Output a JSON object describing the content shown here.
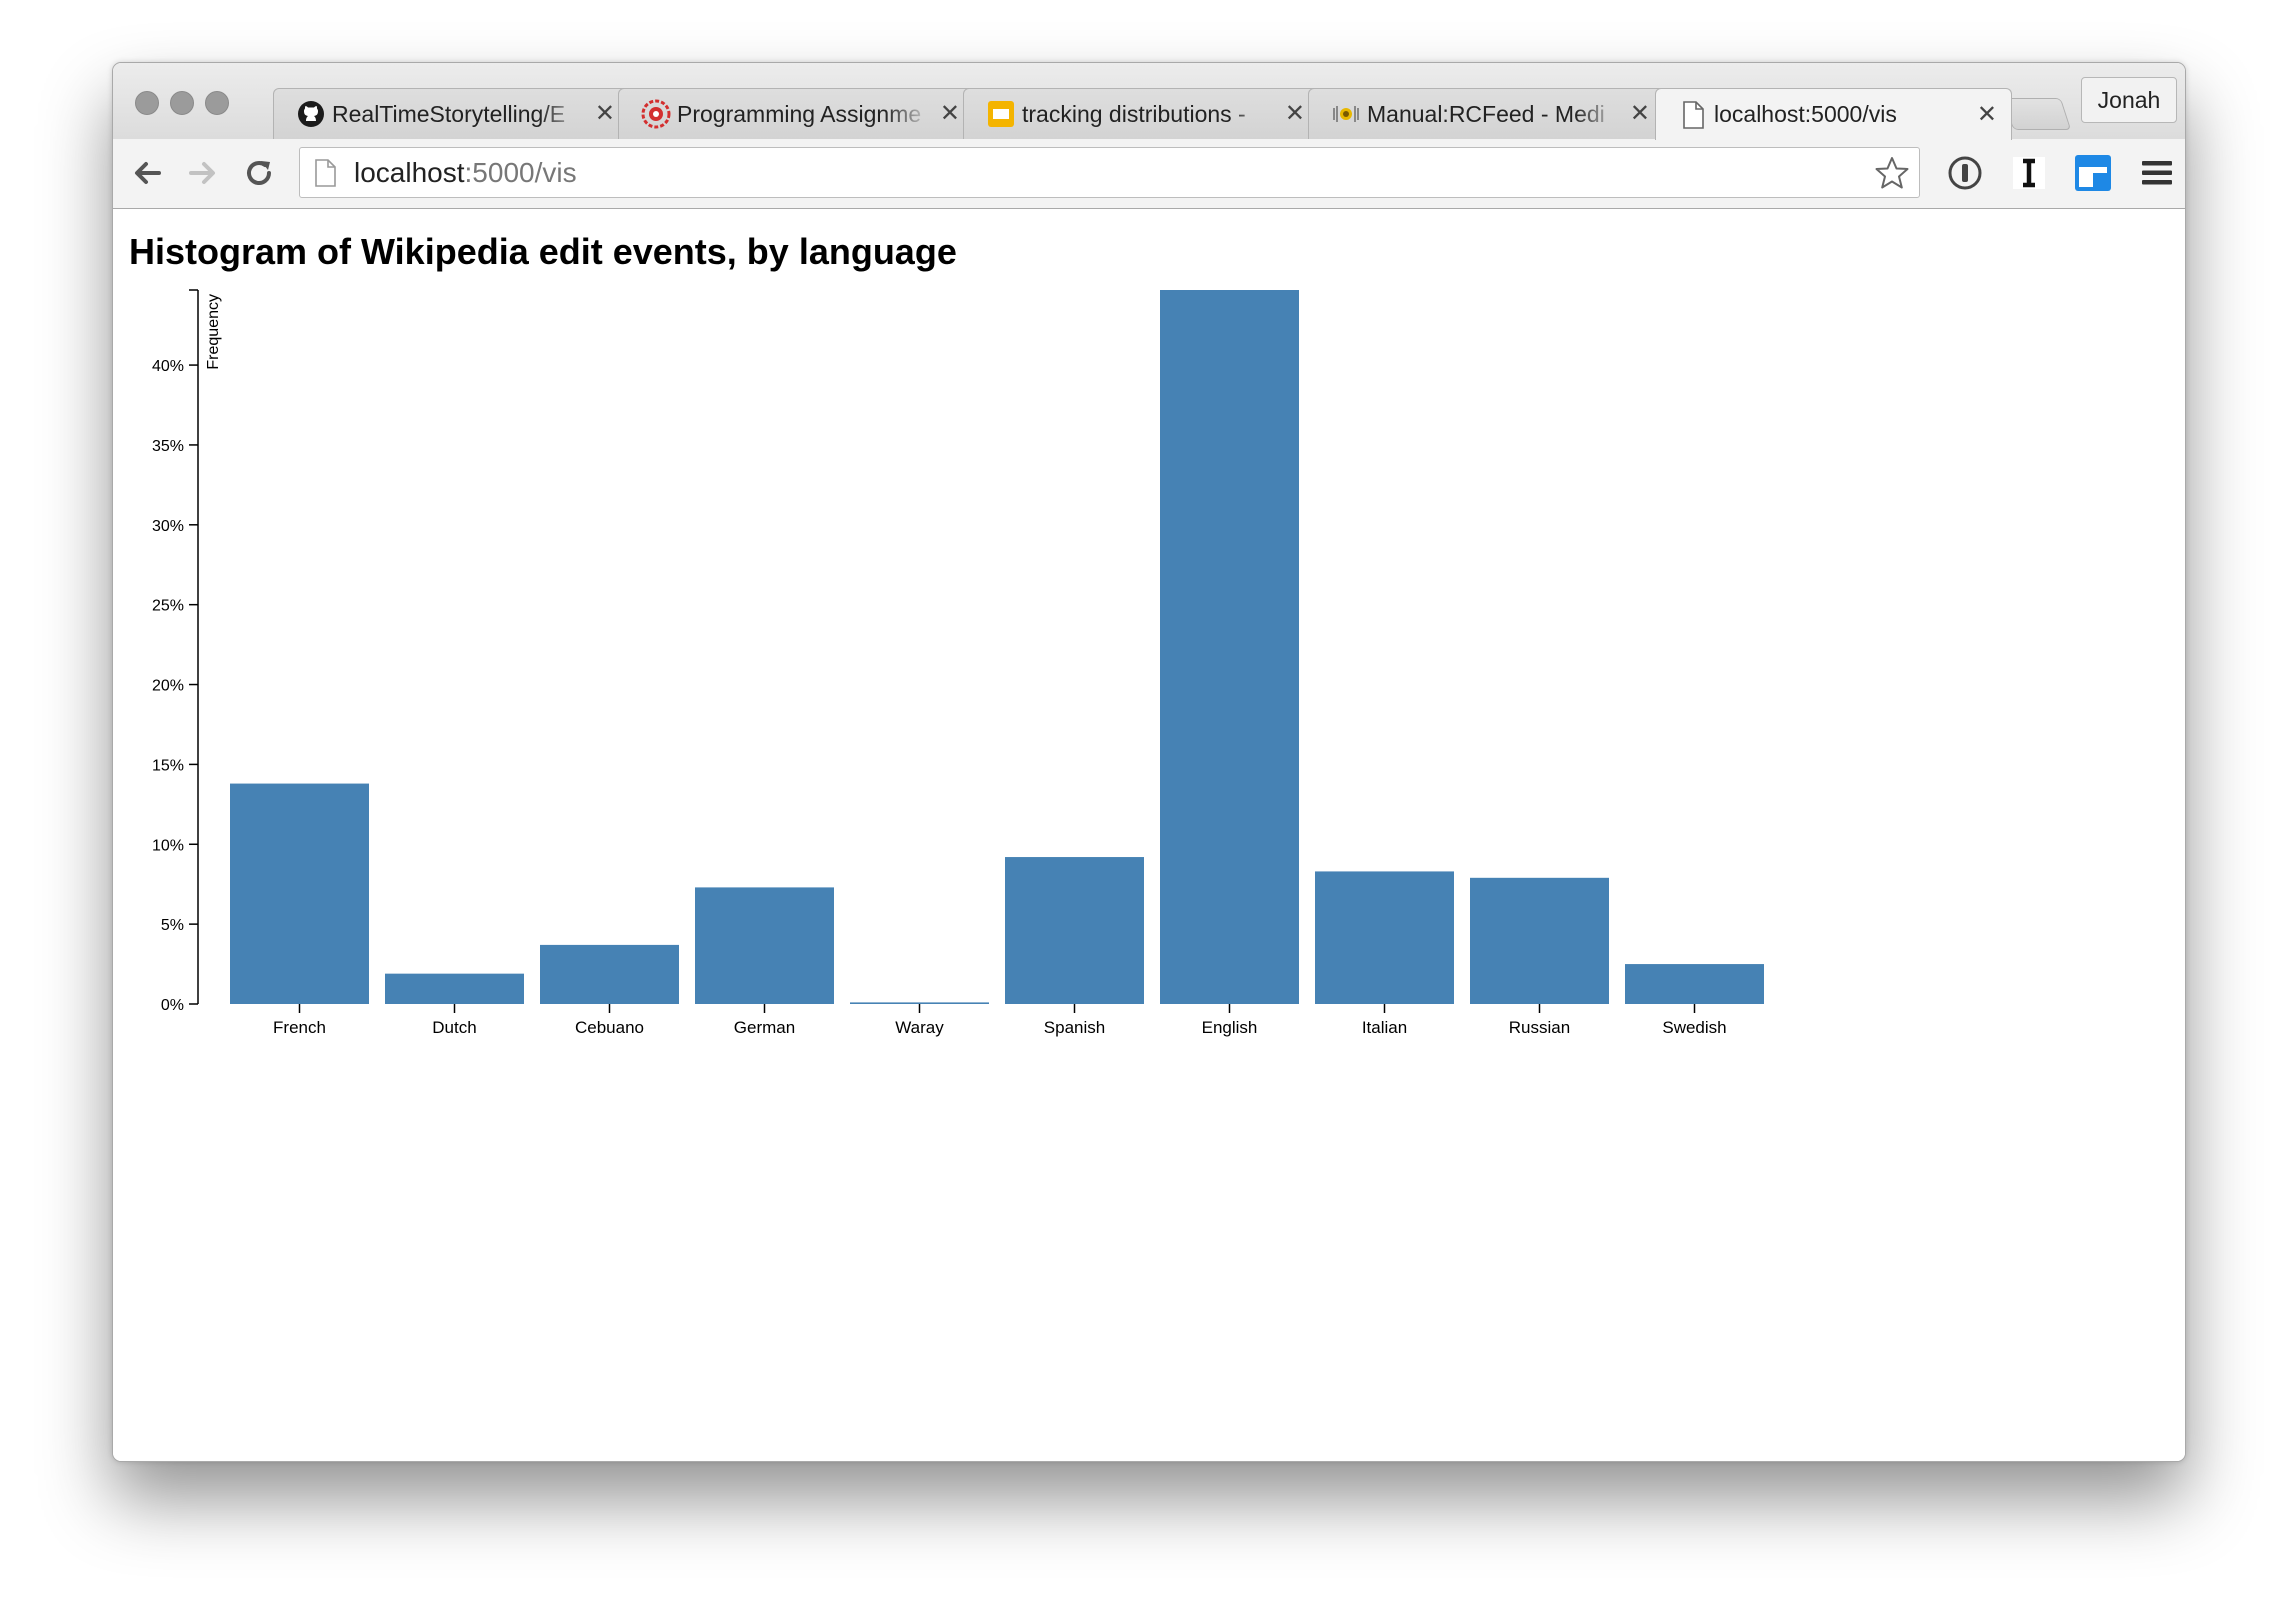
{
  "window": {
    "tabs": [
      {
        "title": "RealTimeStorytelling/E",
        "icon": "github-icon"
      },
      {
        "title": "Programming Assignme",
        "icon": "cornell-seal-icon"
      },
      {
        "title": "tracking distributions -",
        "icon": "google-slides-icon"
      },
      {
        "title": "Manual:RCFeed - Medi",
        "icon": "mediawiki-icon"
      },
      {
        "title": "localhost:5000/vis",
        "icon": "page-icon"
      }
    ],
    "profile_name": "Jonah"
  },
  "toolbar": {
    "url_host": "localhost",
    "url_rest": ":5000/vis"
  },
  "page": {
    "title": "Histogram of Wikipedia edit events, by language"
  },
  "chart_data": {
    "type": "bar",
    "ylabel": "Frequency",
    "xlabel": "",
    "categories": [
      "French",
      "Dutch",
      "Cebuano",
      "German",
      "Waray",
      "Spanish",
      "English",
      "Italian",
      "Russian",
      "Swedish"
    ],
    "values": [
      13.8,
      1.9,
      3.7,
      7.3,
      0.1,
      9.2,
      44.7,
      8.3,
      7.9,
      2.5
    ],
    "ylim": [
      0,
      44.7
    ],
    "yticks": [
      "0%",
      "5%",
      "10%",
      "15%",
      "20%",
      "25%",
      "30%",
      "35%",
      "40%"
    ],
    "ytick_values": [
      0,
      5,
      10,
      15,
      20,
      25,
      30,
      35,
      40
    ],
    "bar_color": "#4682b4",
    "grid": false,
    "legend": "none"
  }
}
